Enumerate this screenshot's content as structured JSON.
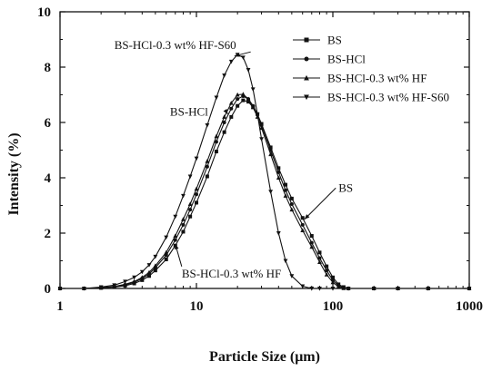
{
  "chart_data": {
    "type": "line",
    "xlabel": "Particle Size (μm)",
    "ylabel": "Intensity (%)",
    "xscale": "log",
    "xlim": [
      1,
      1000
    ],
    "ylim": [
      0,
      10
    ],
    "x_ticks": [
      1,
      10,
      100,
      1000
    ],
    "y_ticks": [
      0,
      2,
      4,
      6,
      8,
      10
    ],
    "legend_position": "top-right",
    "grid": false,
    "series": [
      {
        "name": "BS",
        "marker": "square",
        "points": [
          [
            1,
            0
          ],
          [
            1.5,
            0
          ],
          [
            2,
            0.02
          ],
          [
            2.5,
            0.05
          ],
          [
            3,
            0.1
          ],
          [
            3.5,
            0.18
          ],
          [
            4,
            0.3
          ],
          [
            4.5,
            0.45
          ],
          [
            5,
            0.65
          ],
          [
            6,
            1.05
          ],
          [
            7,
            1.55
          ],
          [
            8,
            2.05
          ],
          [
            9,
            2.6
          ],
          [
            10,
            3.1
          ],
          [
            12,
            4.05
          ],
          [
            14,
            4.95
          ],
          [
            16,
            5.65
          ],
          [
            18,
            6.2
          ],
          [
            20,
            6.6
          ],
          [
            22,
            6.8
          ],
          [
            24,
            6.75
          ],
          [
            26,
            6.55
          ],
          [
            28,
            6.3
          ],
          [
            30,
            5.95
          ],
          [
            35,
            5.1
          ],
          [
            40,
            4.35
          ],
          [
            45,
            3.75
          ],
          [
            50,
            3.25
          ],
          [
            60,
            2.55
          ],
          [
            70,
            1.9
          ],
          [
            80,
            1.3
          ],
          [
            90,
            0.8
          ],
          [
            100,
            0.4
          ],
          [
            110,
            0.15
          ],
          [
            120,
            0.05
          ],
          [
            130,
            0
          ],
          [
            200,
            0
          ],
          [
            300,
            0
          ],
          [
            500,
            0
          ],
          [
            1000,
            0
          ]
        ]
      },
      {
        "name": "BS-HCl",
        "marker": "circle",
        "points": [
          [
            1,
            0
          ],
          [
            1.5,
            0
          ],
          [
            2,
            0.02
          ],
          [
            2.5,
            0.06
          ],
          [
            3,
            0.13
          ],
          [
            3.5,
            0.22
          ],
          [
            4,
            0.36
          ],
          [
            4.5,
            0.52
          ],
          [
            5,
            0.75
          ],
          [
            6,
            1.2
          ],
          [
            7,
            1.75
          ],
          [
            8,
            2.3
          ],
          [
            9,
            2.85
          ],
          [
            10,
            3.4
          ],
          [
            12,
            4.4
          ],
          [
            14,
            5.3
          ],
          [
            16,
            6.0
          ],
          [
            18,
            6.5
          ],
          [
            20,
            6.85
          ],
          [
            22,
            6.95
          ],
          [
            24,
            6.85
          ],
          [
            26,
            6.6
          ],
          [
            28,
            6.3
          ],
          [
            30,
            5.9
          ],
          [
            35,
            5.0
          ],
          [
            40,
            4.2
          ],
          [
            45,
            3.55
          ],
          [
            50,
            3.05
          ],
          [
            60,
            2.3
          ],
          [
            70,
            1.65
          ],
          [
            80,
            1.1
          ],
          [
            90,
            0.65
          ],
          [
            100,
            0.3
          ],
          [
            110,
            0.1
          ],
          [
            120,
            0.02
          ],
          [
            130,
            0
          ],
          [
            200,
            0
          ],
          [
            300,
            0
          ],
          [
            500,
            0
          ],
          [
            1000,
            0
          ]
        ]
      },
      {
        "name": "BS-HCl-0.3 wt% HF",
        "marker": "triangle-up",
        "points": [
          [
            1,
            0
          ],
          [
            1.5,
            0
          ],
          [
            2,
            0.03
          ],
          [
            2.5,
            0.07
          ],
          [
            3,
            0.15
          ],
          [
            3.5,
            0.25
          ],
          [
            4,
            0.4
          ],
          [
            4.5,
            0.58
          ],
          [
            5,
            0.82
          ],
          [
            6,
            1.3
          ],
          [
            7,
            1.9
          ],
          [
            8,
            2.5
          ],
          [
            9,
            3.05
          ],
          [
            10,
            3.6
          ],
          [
            12,
            4.6
          ],
          [
            14,
            5.5
          ],
          [
            16,
            6.2
          ],
          [
            18,
            6.7
          ],
          [
            20,
            7.0
          ],
          [
            22,
            7.02
          ],
          [
            24,
            6.85
          ],
          [
            26,
            6.55
          ],
          [
            28,
            6.2
          ],
          [
            30,
            5.8
          ],
          [
            35,
            4.85
          ],
          [
            40,
            4.0
          ],
          [
            45,
            3.35
          ],
          [
            50,
            2.85
          ],
          [
            60,
            2.1
          ],
          [
            70,
            1.5
          ],
          [
            80,
            0.95
          ],
          [
            90,
            0.5
          ],
          [
            100,
            0.22
          ],
          [
            110,
            0.06
          ],
          [
            120,
            0.01
          ],
          [
            130,
            0
          ],
          [
            200,
            0
          ],
          [
            300,
            0
          ],
          [
            500,
            0
          ],
          [
            1000,
            0
          ]
        ]
      },
      {
        "name": "BS-HCl-0.3 wt% HF-S60",
        "marker": "triangle-down",
        "points": [
          [
            1,
            0
          ],
          [
            1.5,
            0
          ],
          [
            2,
            0.05
          ],
          [
            2.5,
            0.12
          ],
          [
            3,
            0.25
          ],
          [
            3.5,
            0.4
          ],
          [
            4,
            0.6
          ],
          [
            4.5,
            0.85
          ],
          [
            5,
            1.15
          ],
          [
            6,
            1.85
          ],
          [
            7,
            2.6
          ],
          [
            8,
            3.35
          ],
          [
            9,
            4.05
          ],
          [
            10,
            4.7
          ],
          [
            12,
            5.9
          ],
          [
            14,
            6.9
          ],
          [
            16,
            7.7
          ],
          [
            18,
            8.2
          ],
          [
            20,
            8.45
          ],
          [
            22,
            8.35
          ],
          [
            24,
            7.9
          ],
          [
            26,
            7.2
          ],
          [
            28,
            6.3
          ],
          [
            30,
            5.4
          ],
          [
            35,
            3.5
          ],
          [
            40,
            2.0
          ],
          [
            45,
            1.0
          ],
          [
            50,
            0.45
          ],
          [
            60,
            0.08
          ],
          [
            70,
            0
          ],
          [
            80,
            0
          ],
          [
            100,
            0
          ],
          [
            130,
            0
          ],
          [
            200,
            0
          ],
          [
            300,
            0
          ],
          [
            500,
            0
          ],
          [
            1000,
            0
          ]
        ]
      }
    ],
    "annotations": [
      {
        "text": "BS-HCl-0.3 wt% HF-S60",
        "series": "BS-HCl-0.3 wt% HF-S60",
        "target": [
          19,
          8.4
        ],
        "label_at": [
          2.5,
          8.65
        ],
        "anchor": "start"
      },
      {
        "text": "BS-HCl",
        "series": "BS-HCl",
        "target": [
          17,
          6.3
        ],
        "label_at": [
          6.4,
          6.25
        ],
        "anchor": "start"
      },
      {
        "text": "BS",
        "series": "BS",
        "target": [
          62,
          2.5
        ],
        "label_at": [
          110,
          3.5
        ],
        "anchor": "start"
      },
      {
        "text": "BS-HCl-0.3 wt% HF",
        "series": "BS-HCl-0.3 wt% HF",
        "target": [
          7,
          1.6
        ],
        "label_at": [
          7.8,
          0.4
        ],
        "anchor": "start"
      }
    ]
  }
}
